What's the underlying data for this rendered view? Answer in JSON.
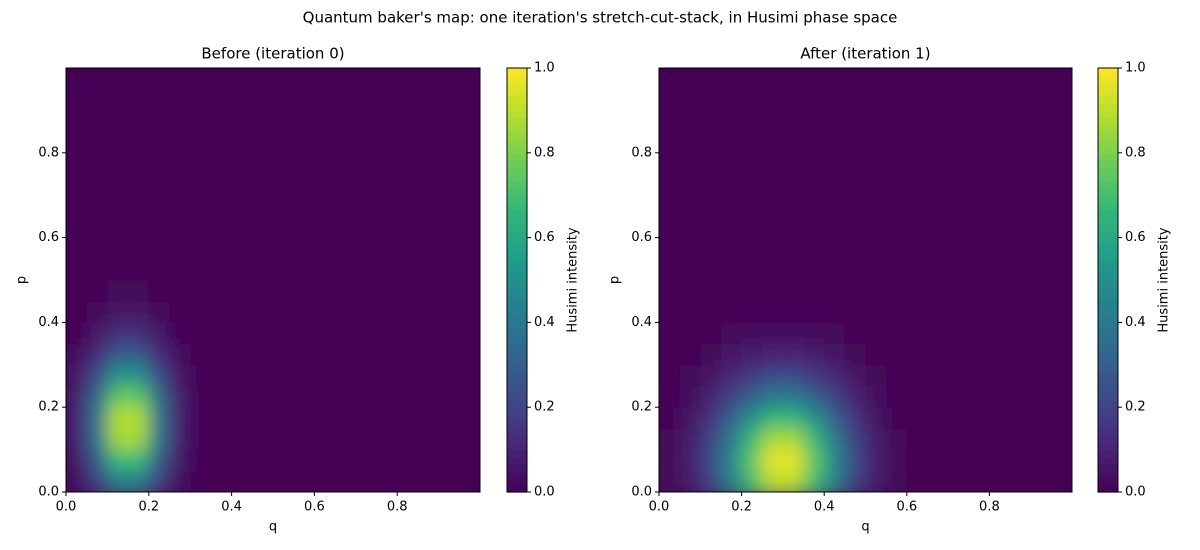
{
  "title": "Quantum baker's map: one iteration's stretch-cut-stack, in Husimi phase space",
  "chart_data": [
    {
      "type": "heatmap",
      "title": "Before (iteration 0)",
      "x_label": "q",
      "y_label": "p",
      "colorbar_label": "Husimi intensity",
      "colormap": "viridis",
      "clim": [
        0,
        1
      ],
      "cticks": [
        {
          "value": 0,
          "label": "0.0"
        },
        0.2,
        0.4,
        0.6,
        0.8,
        {
          "value": 1,
          "label": "1.0"
        }
      ],
      "xlim": [
        0,
        1
      ],
      "ylim": [
        0,
        1
      ],
      "xticks": [
        {
          "value": 0,
          "label": "0.0"
        },
        0.2,
        0.4,
        0.6,
        0.8
      ],
      "yticks": [
        {
          "value": 0,
          "label": "0.0"
        },
        0.2,
        0.4,
        0.6,
        0.8
      ],
      "x": [
        0.025,
        0.075,
        0.125,
        0.175,
        0.225,
        0.275,
        0.325,
        0.375,
        0.425,
        0.475,
        0.525,
        0.575,
        0.625,
        0.675,
        0.725,
        0.775,
        0.825,
        0.875,
        0.925,
        0.975
      ],
      "y": [
        0.025,
        0.075,
        0.125,
        0.175,
        0.225,
        0.275,
        0.325,
        0.375,
        0.425,
        0.475,
        0.525,
        0.575,
        0.625,
        0.675,
        0.725,
        0.775,
        0.825,
        0.875,
        0.925,
        0.975
      ],
      "values": [
        [
          0.04,
          0.18,
          0.42,
          0.42,
          0.18,
          0.04,
          0,
          0,
          0,
          0,
          0,
          0,
          0,
          0,
          0,
          0,
          0,
          0,
          0,
          0
        ],
        [
          0.06,
          0.29,
          0.67,
          0.67,
          0.29,
          0.06,
          0.01,
          0,
          0,
          0,
          0,
          0,
          0,
          0,
          0,
          0,
          0,
          0,
          0,
          0
        ],
        [
          0.08,
          0.37,
          0.86,
          0.86,
          0.37,
          0.08,
          0.01,
          0,
          0,
          0,
          0,
          0,
          0,
          0,
          0,
          0,
          0,
          0,
          0,
          0
        ],
        [
          0.08,
          0.39,
          0.89,
          0.89,
          0.39,
          0.08,
          0.01,
          0,
          0,
          0,
          0,
          0,
          0,
          0,
          0,
          0,
          0,
          0,
          0,
          0
        ],
        [
          0.07,
          0.33,
          0.76,
          0.76,
          0.33,
          0.07,
          0.01,
          0,
          0,
          0,
          0,
          0,
          0,
          0,
          0,
          0,
          0,
          0,
          0,
          0
        ],
        [
          0.05,
          0.23,
          0.52,
          0.52,
          0.23,
          0.05,
          0.01,
          0,
          0,
          0,
          0,
          0,
          0,
          0,
          0,
          0,
          0,
          0,
          0,
          0
        ],
        [
          0.03,
          0.12,
          0.29,
          0.29,
          0.12,
          0.03,
          0,
          0,
          0,
          0,
          0,
          0,
          0,
          0,
          0,
          0,
          0,
          0,
          0,
          0
        ],
        [
          0.01,
          0.06,
          0.14,
          0.14,
          0.06,
          0.01,
          0,
          0,
          0,
          0,
          0,
          0,
          0,
          0,
          0,
          0,
          0,
          0,
          0,
          0
        ],
        [
          0,
          0.02,
          0.05,
          0.05,
          0.02,
          0,
          0,
          0,
          0,
          0,
          0,
          0,
          0,
          0,
          0,
          0,
          0,
          0,
          0,
          0
        ],
        [
          0,
          0.01,
          0.02,
          0.02,
          0.01,
          0,
          0,
          0,
          0,
          0,
          0,
          0,
          0,
          0,
          0,
          0,
          0,
          0,
          0,
          0
        ],
        [
          0,
          0,
          0,
          0,
          0,
          0,
          0,
          0,
          0,
          0,
          0,
          0,
          0,
          0,
          0,
          0,
          0,
          0,
          0,
          0
        ],
        [
          0,
          0,
          0,
          0,
          0,
          0,
          0,
          0,
          0,
          0,
          0,
          0,
          0,
          0,
          0,
          0,
          0,
          0,
          0,
          0
        ],
        [
          0,
          0,
          0,
          0,
          0,
          0,
          0,
          0,
          0,
          0,
          0,
          0,
          0,
          0,
          0,
          0,
          0,
          0,
          0,
          0
        ],
        [
          0,
          0,
          0,
          0,
          0,
          0,
          0,
          0,
          0,
          0,
          0,
          0,
          0,
          0,
          0,
          0,
          0,
          0,
          0,
          0
        ],
        [
          0,
          0,
          0,
          0,
          0,
          0,
          0,
          0,
          0,
          0,
          0,
          0,
          0,
          0,
          0,
          0,
          0,
          0,
          0,
          0
        ],
        [
          0,
          0,
          0,
          0,
          0,
          0,
          0,
          0,
          0,
          0,
          0,
          0,
          0,
          0,
          0,
          0,
          0,
          0,
          0,
          0
        ],
        [
          0,
          0,
          0,
          0,
          0,
          0,
          0,
          0,
          0,
          0,
          0,
          0,
          0,
          0,
          0,
          0,
          0,
          0,
          0,
          0
        ],
        [
          0,
          0,
          0,
          0,
          0,
          0,
          0,
          0,
          0,
          0,
          0,
          0,
          0,
          0,
          0,
          0,
          0,
          0,
          0,
          0
        ],
        [
          0,
          0,
          0,
          0,
          0,
          0,
          0,
          0,
          0,
          0,
          0,
          0,
          0,
          0,
          0,
          0,
          0,
          0,
          0,
          0
        ],
        [
          0,
          0,
          0,
          0,
          0,
          0,
          0,
          0,
          0,
          0,
          0,
          0,
          0,
          0,
          0,
          0,
          0,
          0,
          0,
          0
        ]
      ]
    },
    {
      "type": "heatmap",
      "title": "After (iteration 1)",
      "x_label": "q",
      "y_label": "p",
      "colorbar_label": "Husimi intensity",
      "colormap": "viridis",
      "clim": [
        0,
        1
      ],
      "cticks": [
        {
          "value": 0,
          "label": "0.0"
        },
        0.2,
        0.4,
        0.6,
        0.8,
        {
          "value": 1,
          "label": "1.0"
        }
      ],
      "xlim": [
        0,
        1
      ],
      "ylim": [
        0,
        1
      ],
      "xticks": [
        {
          "value": 0,
          "label": "0.0"
        },
        0.2,
        0.4,
        0.6,
        0.8
      ],
      "yticks": [
        {
          "value": 0,
          "label": "0.0"
        },
        0.2,
        0.4,
        0.6,
        0.8
      ],
      "x": [
        0.025,
        0.075,
        0.125,
        0.175,
        0.225,
        0.275,
        0.325,
        0.375,
        0.425,
        0.475,
        0.525,
        0.575,
        0.625,
        0.675,
        0.725,
        0.775,
        0.825,
        0.875,
        0.925,
        0.975
      ],
      "y": [
        0.025,
        0.075,
        0.125,
        0.175,
        0.225,
        0.275,
        0.325,
        0.375,
        0.425,
        0.475,
        0.525,
        0.575,
        0.625,
        0.675,
        0.725,
        0.775,
        0.825,
        0.875,
        0.925,
        0.975
      ],
      "values": [
        [
          0.02,
          0.07,
          0.2,
          0.43,
          0.7,
          0.9,
          0.9,
          0.7,
          0.43,
          0.2,
          0.07,
          0.02,
          0,
          0,
          0,
          0,
          0,
          0,
          0,
          0
        ],
        [
          0.02,
          0.08,
          0.22,
          0.46,
          0.75,
          0.97,
          0.97,
          0.75,
          0.46,
          0.22,
          0.08,
          0.02,
          0.01,
          0,
          0,
          0,
          0,
          0,
          0,
          0
        ],
        [
          0.02,
          0.07,
          0.2,
          0.41,
          0.68,
          0.87,
          0.87,
          0.68,
          0.41,
          0.2,
          0.07,
          0.02,
          0,
          0,
          0,
          0,
          0,
          0,
          0,
          0
        ],
        [
          0.01,
          0.05,
          0.15,
          0.31,
          0.51,
          0.66,
          0.66,
          0.51,
          0.31,
          0.15,
          0.05,
          0.01,
          0,
          0,
          0,
          0,
          0,
          0,
          0,
          0
        ],
        [
          0.01,
          0.03,
          0.09,
          0.2,
          0.32,
          0.42,
          0.42,
          0.32,
          0.2,
          0.09,
          0.03,
          0.01,
          0,
          0,
          0,
          0,
          0,
          0,
          0,
          0
        ],
        [
          0,
          0.02,
          0.05,
          0.11,
          0.17,
          0.22,
          0.22,
          0.17,
          0.11,
          0.05,
          0.02,
          0,
          0,
          0,
          0,
          0,
          0,
          0,
          0,
          0
        ],
        [
          0,
          0.01,
          0.02,
          0.05,
          0.08,
          0.1,
          0.1,
          0.08,
          0.05,
          0.02,
          0.01,
          0,
          0,
          0,
          0,
          0,
          0,
          0,
          0,
          0
        ],
        [
          0,
          0,
          0.01,
          0.02,
          0.03,
          0.04,
          0.04,
          0.03,
          0.02,
          0.01,
          0,
          0,
          0,
          0,
          0,
          0,
          0,
          0,
          0,
          0
        ],
        [
          0,
          0,
          0,
          0.01,
          0.01,
          0.01,
          0.01,
          0.01,
          0.01,
          0,
          0,
          0,
          0,
          0,
          0,
          0,
          0,
          0,
          0,
          0
        ],
        [
          0,
          0,
          0,
          0,
          0,
          0,
          0,
          0,
          0,
          0,
          0,
          0,
          0,
          0,
          0,
          0,
          0,
          0,
          0,
          0
        ],
        [
          0,
          0,
          0,
          0,
          0,
          0,
          0,
          0,
          0,
          0,
          0,
          0,
          0,
          0,
          0,
          0,
          0,
          0,
          0,
          0
        ],
        [
          0,
          0,
          0,
          0,
          0,
          0,
          0,
          0,
          0,
          0,
          0,
          0,
          0,
          0,
          0,
          0,
          0,
          0,
          0,
          0
        ],
        [
          0,
          0,
          0,
          0,
          0,
          0,
          0,
          0,
          0,
          0,
          0,
          0,
          0,
          0,
          0,
          0,
          0,
          0,
          0,
          0
        ],
        [
          0,
          0,
          0,
          0,
          0,
          0,
          0,
          0,
          0,
          0,
          0,
          0,
          0,
          0,
          0,
          0,
          0,
          0,
          0,
          0
        ],
        [
          0,
          0,
          0,
          0,
          0,
          0,
          0,
          0,
          0,
          0,
          0,
          0,
          0,
          0,
          0,
          0,
          0,
          0,
          0,
          0
        ],
        [
          0,
          0,
          0,
          0,
          0,
          0,
          0,
          0,
          0,
          0,
          0,
          0,
          0,
          0,
          0,
          0,
          0,
          0,
          0,
          0
        ],
        [
          0,
          0,
          0,
          0,
          0,
          0,
          0,
          0,
          0,
          0,
          0,
          0,
          0,
          0,
          0,
          0,
          0,
          0,
          0,
          0
        ],
        [
          0,
          0,
          0,
          0,
          0,
          0,
          0,
          0,
          0,
          0,
          0,
          0,
          0,
          0,
          0,
          0,
          0,
          0,
          0,
          0
        ],
        [
          0,
          0,
          0,
          0,
          0,
          0,
          0,
          0,
          0,
          0,
          0,
          0,
          0,
          0,
          0,
          0,
          0,
          0,
          0,
          0
        ],
        [
          0,
          0,
          0,
          0,
          0,
          0,
          0,
          0,
          0,
          0,
          0,
          0,
          0,
          0,
          0,
          0,
          0,
          0,
          0,
          0
        ]
      ]
    }
  ]
}
